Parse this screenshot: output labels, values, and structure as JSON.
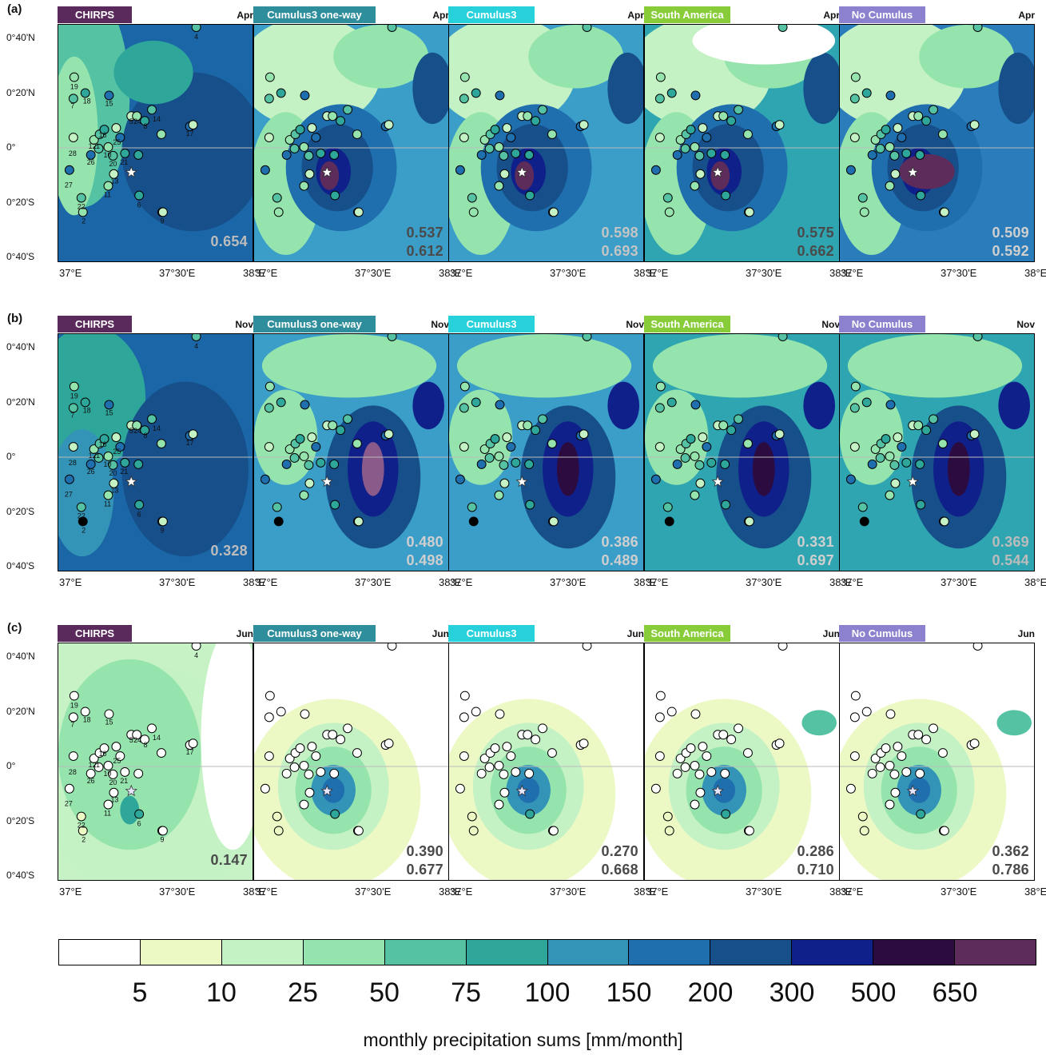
{
  "rows": [
    {
      "label": "(a)",
      "month": "Apr",
      "panels": [
        {
          "name": "CHIRPS",
          "tag_color": "#5b2a5c",
          "score1": "0.654",
          "score2": "",
          "score_color": "#bcbcbc",
          "base": "#1a66a6"
        },
        {
          "name": "Cumulus3 one-way",
          "tag_color": "#2f8e9c",
          "score1": "0.537",
          "score2": "0.612",
          "score_color": "#4a4a4a",
          "base": "#3a9ec8"
        },
        {
          "name": "Cumulus3",
          "tag_color": "#27d1dc",
          "score1": "0.598",
          "score2": "0.693",
          "score_color": "#c4c4c4",
          "base": "#3a9ec8"
        },
        {
          "name": "South America",
          "tag_color": "#88cc3a",
          "score1": "0.575",
          "score2": "0.662",
          "score_color": "#4a4a4a",
          "base": "#2ea5b0"
        },
        {
          "name": "No Cumulus",
          "tag_color": "#8b81cf",
          "score1": "0.509",
          "score2": "0.592",
          "score_color": "#cfcfcf",
          "base": "#2a7dba"
        }
      ]
    },
    {
      "label": "(b)",
      "month": "Nov",
      "panels": [
        {
          "name": "CHIRPS",
          "tag_color": "#5b2a5c",
          "score1": "0.328",
          "score2": "",
          "score_color": "#bcbcbc",
          "base": "#1a66a6"
        },
        {
          "name": "Cumulus3 one-way",
          "tag_color": "#2f8e9c",
          "score1": "0.480",
          "score2": "0.498",
          "score_color": "#cfcfcf",
          "base": "#3a9ec8"
        },
        {
          "name": "Cumulus3",
          "tag_color": "#27d1dc",
          "score1": "0.386",
          "score2": "0.489",
          "score_color": "#cfcfcf",
          "base": "#3a9ec8"
        },
        {
          "name": "South America",
          "tag_color": "#88cc3a",
          "score1": "0.331",
          "score2": "0.697",
          "score_color": "#cfcfcf",
          "base": "#2ea5b0"
        },
        {
          "name": "No Cumulus",
          "tag_color": "#8b81cf",
          "score1": "0.369",
          "score2": "0.544",
          "score_color": "#bcbcbc",
          "base": "#2ea5b0"
        }
      ]
    },
    {
      "label": "(c)",
      "month": "Jun",
      "panels": [
        {
          "name": "CHIRPS",
          "tag_color": "#5b2a5c",
          "score1": "0.147",
          "score2": "",
          "score_color": "#4a4a4a",
          "base": "#c6f2c6"
        },
        {
          "name": "Cumulus3 one-way",
          "tag_color": "#2f8e9c",
          "score1": "0.390",
          "score2": "0.677",
          "score_color": "#4a4a4a",
          "base": "#ffffff"
        },
        {
          "name": "Cumulus3",
          "tag_color": "#27d1dc",
          "score1": "0.270",
          "score2": "0.668",
          "score_color": "#4a4a4a",
          "base": "#ffffff"
        },
        {
          "name": "South America",
          "tag_color": "#88cc3a",
          "score1": "0.286",
          "score2": "0.710",
          "score_color": "#4a4a4a",
          "base": "#ffffff"
        },
        {
          "name": "No Cumulus",
          "tag_color": "#8b81cf",
          "score1": "0.362",
          "score2": "0.786",
          "score_color": "#4a4a4a",
          "base": "#ffffff"
        }
      ]
    }
  ],
  "lat_labels": [
    "0°40'N",
    "0°20'N",
    "0°",
    "0°20'S",
    "0°40'S"
  ],
  "lon_labels": [
    "37°E",
    "37°30'E",
    "38°E"
  ],
  "station_numbers": [
    "19",
    "7",
    "18",
    "15",
    "5",
    "24",
    "14",
    "8",
    "17",
    "28",
    "12",
    "16",
    "1",
    "26",
    "25",
    "10",
    "20",
    "21",
    "27",
    "13",
    "11",
    "22",
    "6",
    "9",
    "2",
    "4"
  ],
  "legend": {
    "colors": [
      "#ffffff",
      "#ecf9c4",
      "#c5f2c5",
      "#95e4ae",
      "#55c2a3",
      "#2ea69a",
      "#3394b7",
      "#1f6fae",
      "#164f8a",
      "#10208a",
      "#2c0c40",
      "#5e2c5a"
    ],
    "ticks": [
      "5",
      "10",
      "25",
      "50",
      "75",
      "100",
      "150",
      "200",
      "300",
      "500",
      "650"
    ],
    "title": "monthly precipitation sums [mm/month]"
  }
}
